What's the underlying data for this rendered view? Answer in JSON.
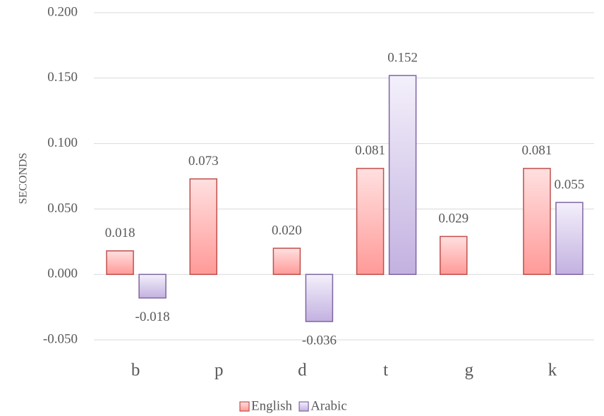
{
  "chart_data": {
    "type": "bar",
    "y_label": "SECONDS",
    "categories": [
      "b",
      "p",
      "d",
      "t",
      "g",
      "k"
    ],
    "series": [
      {
        "name": "English",
        "color": "#c0504d",
        "values": [
          0.018,
          0.073,
          0.02,
          0.081,
          0.029,
          0.081
        ],
        "value_labels": [
          "0.018",
          "0.073",
          "0.020",
          "0.081",
          "0.029",
          "0.081"
        ]
      },
      {
        "name": "Arabic",
        "color": "#8064a2",
        "values": [
          -0.018,
          null,
          -0.036,
          0.152,
          null,
          0.055
        ],
        "value_labels": [
          "-0.018",
          null,
          "-0.036",
          "0.152",
          null,
          "0.055"
        ]
      }
    ],
    "ylim": [
      -0.05,
      0.2
    ],
    "yticks": [
      {
        "value": -0.05,
        "label": "-0.050"
      },
      {
        "value": 0,
        "label": "0.000"
      },
      {
        "value": 0.05,
        "label": "0.050"
      },
      {
        "value": 0.1,
        "label": "0.100"
      },
      {
        "value": 0.15,
        "label": "0.150"
      },
      {
        "value": 0.2,
        "label": "0.200"
      }
    ],
    "grid": true,
    "legend": "bottom"
  }
}
